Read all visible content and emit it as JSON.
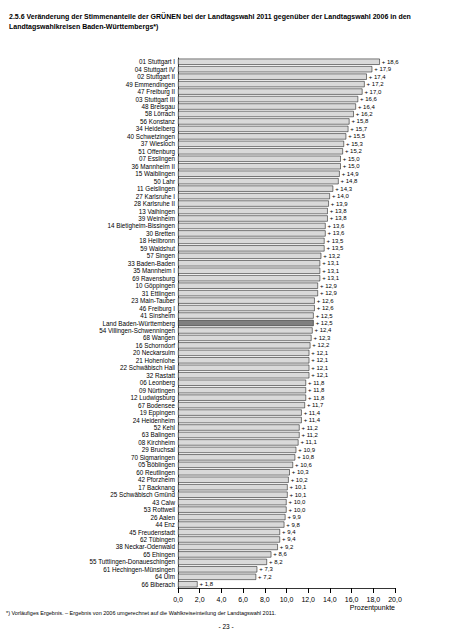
{
  "chart_data": {
    "type": "bar",
    "title": "2.5.6 Veränderung der Stimmenanteile der GRÜNEN bei der Landtagswahl 2011 gegenüber der Landtagswahl 2006 in den Landtagswahlkreisen Baden-Württembergs*)",
    "orientation": "horizontal",
    "xlabel": "Prozentpunkte",
    "annotations": [
      "*) Vorläufiges Ergebnis. – Ergebnis von 2006 umgerechnet auf die Wahlkreiseinteilung der Landtagswahl 2011.",
      "- 23 -"
    ],
    "categories": [
      "01 Stuttgart I",
      "04 Stuttgart IV",
      "02 Stuttgart II",
      "49 Emmendingen",
      "47 Freiburg II",
      "03 Stuttgart III",
      "48 Breisgau",
      "58 Lörrach",
      "56 Konstanz",
      "34 Heidelberg",
      "40 Schwetzingen",
      "37 Wiesloch",
      "51 Offenburg",
      "07 Esslingen",
      "36 Mannheim II",
      "15 Waiblingen",
      "50 Lahr",
      "11 Geislingen",
      "27 Karlsruhe I",
      "28 Karlsruhe II",
      "13 Vaihingen",
      "39 Weinheim",
      "14 Bietigheim-Bissingen",
      "30 Bretten",
      "18 Heilbronn",
      "59 Waldshut",
      "57 Singen",
      "33 Baden-Baden",
      "35 Mannheim I",
      "69 Ravensburg",
      "10 Göppingen",
      "31 Ettlingen",
      "23 Main-Tauber",
      "46 Freiburg I",
      "41 Sinsheim",
      "Land Baden-Württemberg",
      "54 Villingen-Schwenningen",
      "68 Wangen",
      "16 Schorndorf",
      "20 Neckarsulm",
      "21 Hohenlohe",
      "22 Schwäbisch Hall",
      "32 Rastatt",
      "06 Leonberg",
      "09 Nürtingen",
      "12 Ludwigsburg",
      "67 Bodensee",
      "19 Eppingen",
      "24 Heidenheim",
      "52 Kehl",
      "63 Balingen",
      "08 Kirchheim",
      "29 Bruchsal",
      "70 Sigmaringen",
      "05 Böblingen",
      "60 Reutlingen",
      "42 Pforzheim",
      "17 Backnang",
      "25 Schwäbisch Gmünd",
      "43 Calw",
      "53 Rottweil",
      "26 Aalen",
      "44 Enz",
      "45 Freudenstadt",
      "62 Tübingen",
      "38 Neckar-Odenwald",
      "65 Ehingen",
      "55 Tuttlingen-Donaueschingen",
      "61 Hechingen-Münsingen",
      "64 Ulm",
      "66 Biberach"
    ],
    "values": [
      18.6,
      17.9,
      17.4,
      17.2,
      17.0,
      16.6,
      16.4,
      16.2,
      15.8,
      15.7,
      15.5,
      15.3,
      15.2,
      15.0,
      15.0,
      14.9,
      14.8,
      14.3,
      14.0,
      13.9,
      13.8,
      13.8,
      13.6,
      13.6,
      13.5,
      13.5,
      13.2,
      13.1,
      13.1,
      13.1,
      12.9,
      12.9,
      12.6,
      12.6,
      12.5,
      12.5,
      12.4,
      12.3,
      12.2,
      12.1,
      12.1,
      12.1,
      12.1,
      11.8,
      11.8,
      11.8,
      11.7,
      11.4,
      11.4,
      11.2,
      11.2,
      11.1,
      10.9,
      10.8,
      10.6,
      10.3,
      10.2,
      10.1,
      10.1,
      10.0,
      10.0,
      9.9,
      9.8,
      9.4,
      9.4,
      9.2,
      8.6,
      8.2,
      7.3,
      7.2,
      1.8
    ],
    "value_labels": [
      "+ 18,6",
      "+ 17,9",
      "+ 17,4",
      "+ 17,2",
      "+ 17,0",
      "+ 16,6",
      "+ 16,4",
      "+ 16,2",
      "+ 15,8",
      "+ 15,7",
      "+ 15,5",
      "+ 15,3",
      "+ 15,2",
      "+ 15,0",
      "+ 15,0",
      "+ 14,9",
      "+ 14,8",
      "+ 14,3",
      "+ 14,0",
      "+ 13,9",
      "+ 13,8",
      "+ 13,8",
      "+ 13,6",
      "+ 13,6",
      "+ 13,5",
      "+ 13,5",
      "+ 13,2",
      "+ 13,1",
      "+ 13,1",
      "+ 13,1",
      "+ 12,9",
      "+ 12,9",
      "+ 12,6",
      "+ 12,6",
      "+ 12,5",
      "+ 12,5",
      "+ 12,4",
      "+ 12,3",
      "+ 12,2",
      "+ 12,1",
      "+ 12,1",
      "+ 12,1",
      "+ 12,1",
      "+ 11,8",
      "+ 11,8",
      "+ 11,8",
      "+ 11,7",
      "+ 11,4",
      "+ 11,4",
      "+ 11,2",
      "+ 11,2",
      "+ 11,1",
      "+ 10,9",
      "+ 10,8",
      "+ 10,6",
      "+ 10,3",
      "+ 10,2",
      "+ 10,1",
      "+ 10,1",
      "+ 10,0",
      "+ 10,0",
      "+ 9,9",
      "+ 9,8",
      "+ 9,4",
      "+ 9,4",
      "+ 9,2",
      "+ 8,6",
      "+ 8,2",
      "+ 7,3",
      "+ 7,2",
      "+ 1,8"
    ],
    "colors": [
      "#d9d9d9",
      "#d9d9d9",
      "#d9d9d9",
      "#d9d9d9",
      "#d9d9d9",
      "#d9d9d9",
      "#d9d9d9",
      "#d9d9d9",
      "#d9d9d9",
      "#d9d9d9",
      "#d9d9d9",
      "#d9d9d9",
      "#d9d9d9",
      "#d9d9d9",
      "#d9d9d9",
      "#d9d9d9",
      "#d9d9d9",
      "#d9d9d9",
      "#d9d9d9",
      "#d9d9d9",
      "#d9d9d9",
      "#d9d9d9",
      "#d9d9d9",
      "#d9d9d9",
      "#d9d9d9",
      "#d9d9d9",
      "#d9d9d9",
      "#d9d9d9",
      "#d9d9d9",
      "#d9d9d9",
      "#d9d9d9",
      "#d9d9d9",
      "#d9d9d9",
      "#d9d9d9",
      "#d9d9d9",
      "#808080",
      "#d9d9d9",
      "#d9d9d9",
      "#d9d9d9",
      "#d9d9d9",
      "#d9d9d9",
      "#d9d9d9",
      "#d9d9d9",
      "#d9d9d9",
      "#d9d9d9",
      "#d9d9d9",
      "#d9d9d9",
      "#d9d9d9",
      "#d9d9d9",
      "#d9d9d9",
      "#d9d9d9",
      "#d9d9d9",
      "#d9d9d9",
      "#d9d9d9",
      "#d9d9d9",
      "#d9d9d9",
      "#d9d9d9",
      "#d9d9d9",
      "#d9d9d9",
      "#d9d9d9",
      "#d9d9d9",
      "#d9d9d9",
      "#d9d9d9",
      "#d9d9d9",
      "#d9d9d9",
      "#d9d9d9",
      "#d9d9d9",
      "#d9d9d9",
      "#d9d9d9",
      "#d9d9d9",
      "#d9d9d9"
    ],
    "xlim": [
      0,
      20
    ],
    "xticks": [
      {
        "value": 0,
        "label": "0,0"
      },
      {
        "value": 2,
        "label": "2,0"
      },
      {
        "value": 4,
        "label": "4,0"
      },
      {
        "value": 6,
        "label": "6,0"
      },
      {
        "value": 8,
        "label": "8,0"
      },
      {
        "value": 10,
        "label": "10,0"
      },
      {
        "value": 12,
        "label": "12,0"
      },
      {
        "value": 14,
        "label": "14,0"
      },
      {
        "value": 16,
        "label": "16,0"
      },
      {
        "value": 18,
        "label": "18,0"
      },
      {
        "value": 20,
        "label": "20,0"
      }
    ],
    "grid": false,
    "data_labels": true
  }
}
